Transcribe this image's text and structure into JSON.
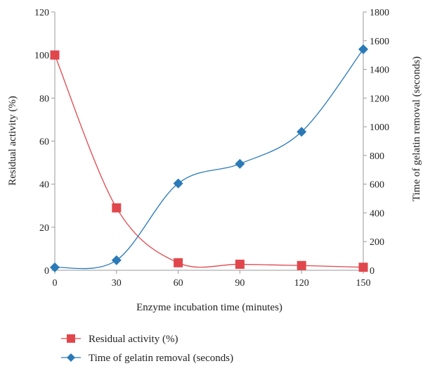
{
  "chart_data": {
    "type": "line",
    "title": "",
    "xlabel": "Enzyme incubation time (minutes)",
    "ylabel_left": "Residual activity (%)",
    "ylabel_right": "Time of gelatin removal (seconds)",
    "x": [
      0,
      30,
      60,
      90,
      120,
      150
    ],
    "x_ticks": [
      "0",
      "30",
      "60",
      "90",
      "120",
      "150"
    ],
    "xlim": [
      0,
      150
    ],
    "ylim_left": [
      0,
      120
    ],
    "yticks_left": [
      "0",
      "20",
      "40",
      "60",
      "80",
      "100",
      "120"
    ],
    "ylim_right": [
      0,
      1800
    ],
    "yticks_right": [
      "0",
      "200",
      "400",
      "600",
      "800",
      "1000",
      "1200",
      "1400",
      "1600",
      "1800"
    ],
    "grid": false,
    "legend_position": "bottom",
    "series": [
      {
        "name": "Residual activity (%)",
        "axis": "left",
        "color": "#e0474c",
        "marker": "square",
        "values": [
          100,
          29,
          3.5,
          2.8,
          2.2,
          1.4
        ]
      },
      {
        "name": "Time of gelatin removal (seconds)",
        "axis": "right",
        "color": "#2a7ab8",
        "marker": "diamond",
        "values": [
          20,
          70,
          605,
          742,
          965,
          1540
        ]
      }
    ]
  }
}
